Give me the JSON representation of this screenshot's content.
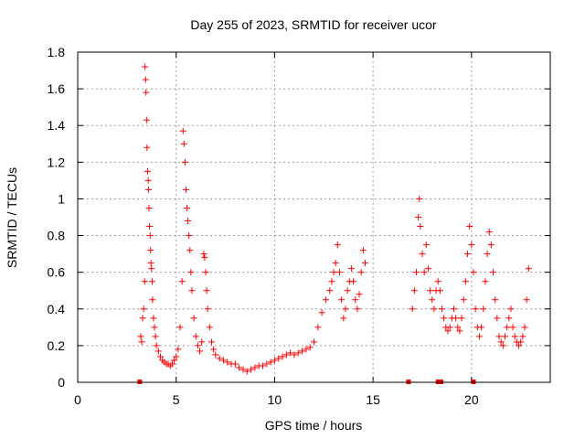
{
  "chart_data": {
    "type": "scatter",
    "title": "Day 255 of 2023, SRMTID for receiver ucor",
    "xlabel": "GPS time / hours",
    "ylabel": "SRMTID / TECUs",
    "xlim": [
      0,
      24
    ],
    "ylim": [
      0,
      1.8
    ],
    "xticks": [
      0,
      5,
      10,
      15,
      20
    ],
    "yticks": [
      0,
      0.2,
      0.4,
      0.6,
      0.8,
      1,
      1.2,
      1.4,
      1.6,
      1.8
    ],
    "xtick_labels": [
      "0",
      "5",
      "10",
      "15",
      "20"
    ],
    "ytick_labels": [
      "0",
      "0.2",
      "0.4",
      "0.6",
      "0.8",
      "1",
      "1.2",
      "1.4",
      "1.6",
      "1.8"
    ],
    "grid": true,
    "marker": "plus",
    "color": "#ff0000",
    "series": [
      {
        "name": "SRMTID",
        "points": [
          [
            3.2,
            0.25
          ],
          [
            3.25,
            0.22
          ],
          [
            3.3,
            0.35
          ],
          [
            3.35,
            0.4
          ],
          [
            3.4,
            0.55
          ],
          [
            3.42,
            1.72
          ],
          [
            3.45,
            1.65
          ],
          [
            3.47,
            1.58
          ],
          [
            3.5,
            1.43
          ],
          [
            3.52,
            1.28
          ],
          [
            3.55,
            1.15
          ],
          [
            3.58,
            1.1
          ],
          [
            3.6,
            1.05
          ],
          [
            3.62,
            0.95
          ],
          [
            3.65,
            0.85
          ],
          [
            3.68,
            0.8
          ],
          [
            3.7,
            0.72
          ],
          [
            3.72,
            0.65
          ],
          [
            3.75,
            0.62
          ],
          [
            3.78,
            0.55
          ],
          [
            3.8,
            0.45
          ],
          [
            3.85,
            0.35
          ],
          [
            3.9,
            0.3
          ],
          [
            3.95,
            0.25
          ],
          [
            4.0,
            0.2
          ],
          [
            4.1,
            0.17
          ],
          [
            4.2,
            0.14
          ],
          [
            4.3,
            0.12
          ],
          [
            4.4,
            0.11
          ],
          [
            4.5,
            0.1
          ],
          [
            4.6,
            0.1
          ],
          [
            4.7,
            0.09
          ],
          [
            4.8,
            0.1
          ],
          [
            4.9,
            0.12
          ],
          [
            5.0,
            0.14
          ],
          [
            5.1,
            0.18
          ],
          [
            5.2,
            0.3
          ],
          [
            5.3,
            0.55
          ],
          [
            5.35,
            1.37
          ],
          [
            5.4,
            1.3
          ],
          [
            5.45,
            1.2
          ],
          [
            5.5,
            1.05
          ],
          [
            5.55,
            0.95
          ],
          [
            5.6,
            0.88
          ],
          [
            5.65,
            0.8
          ],
          [
            5.7,
            0.72
          ],
          [
            5.75,
            0.6
          ],
          [
            5.8,
            0.5
          ],
          [
            5.9,
            0.35
          ],
          [
            6.0,
            0.25
          ],
          [
            6.1,
            0.2
          ],
          [
            6.2,
            0.17
          ],
          [
            6.3,
            0.22
          ],
          [
            6.4,
            0.7
          ],
          [
            6.45,
            0.68
          ],
          [
            6.5,
            0.6
          ],
          [
            6.55,
            0.5
          ],
          [
            6.6,
            0.4
          ],
          [
            6.7,
            0.3
          ],
          [
            6.8,
            0.22
          ],
          [
            6.9,
            0.18
          ],
          [
            7.0,
            0.15
          ],
          [
            7.2,
            0.13
          ],
          [
            7.4,
            0.12
          ],
          [
            7.6,
            0.11
          ],
          [
            7.8,
            0.1
          ],
          [
            8.0,
            0.1
          ],
          [
            8.2,
            0.08
          ],
          [
            8.4,
            0.07
          ],
          [
            8.6,
            0.06
          ],
          [
            8.8,
            0.07
          ],
          [
            9.0,
            0.08
          ],
          [
            9.2,
            0.09
          ],
          [
            9.4,
            0.09
          ],
          [
            9.6,
            0.1
          ],
          [
            9.8,
            0.11
          ],
          [
            10.0,
            0.12
          ],
          [
            10.2,
            0.13
          ],
          [
            10.4,
            0.14
          ],
          [
            10.6,
            0.15
          ],
          [
            10.8,
            0.16
          ],
          [
            11.0,
            0.15
          ],
          [
            11.2,
            0.16
          ],
          [
            11.4,
            0.17
          ],
          [
            11.6,
            0.18
          ],
          [
            11.8,
            0.19
          ],
          [
            12.0,
            0.22
          ],
          [
            12.2,
            0.3
          ],
          [
            12.4,
            0.38
          ],
          [
            12.6,
            0.45
          ],
          [
            12.8,
            0.5
          ],
          [
            12.9,
            0.55
          ],
          [
            13.0,
            0.6
          ],
          [
            13.1,
            0.65
          ],
          [
            13.2,
            0.75
          ],
          [
            13.3,
            0.6
          ],
          [
            13.4,
            0.45
          ],
          [
            13.5,
            0.35
          ],
          [
            13.6,
            0.4
          ],
          [
            13.7,
            0.5
          ],
          [
            13.8,
            0.55
          ],
          [
            13.9,
            0.62
          ],
          [
            14.0,
            0.55
          ],
          [
            14.1,
            0.45
          ],
          [
            14.2,
            0.4
          ],
          [
            14.3,
            0.48
          ],
          [
            14.4,
            0.6
          ],
          [
            14.5,
            0.72
          ],
          [
            14.6,
            0.65
          ],
          [
            17.0,
            0.4
          ],
          [
            17.1,
            0.5
          ],
          [
            17.2,
            0.6
          ],
          [
            17.3,
            0.9
          ],
          [
            17.35,
            1.0
          ],
          [
            17.4,
            0.85
          ],
          [
            17.5,
            0.7
          ],
          [
            17.6,
            0.6
          ],
          [
            17.7,
            0.75
          ],
          [
            17.8,
            0.62
          ],
          [
            17.9,
            0.5
          ],
          [
            18.0,
            0.45
          ],
          [
            18.1,
            0.4
          ],
          [
            18.2,
            0.5
          ],
          [
            18.3,
            0.55
          ],
          [
            18.4,
            0.5
          ],
          [
            18.5,
            0.4
          ],
          [
            18.6,
            0.35
          ],
          [
            18.7,
            0.3
          ],
          [
            18.8,
            0.28
          ],
          [
            18.9,
            0.3
          ],
          [
            19.0,
            0.35
          ],
          [
            19.1,
            0.4
          ],
          [
            19.2,
            0.35
          ],
          [
            19.3,
            0.3
          ],
          [
            19.4,
            0.28
          ],
          [
            19.5,
            0.35
          ],
          [
            19.6,
            0.45
          ],
          [
            19.7,
            0.55
          ],
          [
            19.8,
            0.7
          ],
          [
            19.9,
            0.85
          ],
          [
            20.0,
            0.75
          ],
          [
            20.1,
            0.6
          ],
          [
            20.2,
            0.4
          ],
          [
            20.3,
            0.3
          ],
          [
            20.4,
            0.25
          ],
          [
            20.5,
            0.3
          ],
          [
            20.6,
            0.4
          ],
          [
            20.7,
            0.55
          ],
          [
            20.8,
            0.7
          ],
          [
            20.9,
            0.82
          ],
          [
            21.0,
            0.75
          ],
          [
            21.1,
            0.6
          ],
          [
            21.2,
            0.45
          ],
          [
            21.3,
            0.35
          ],
          [
            21.4,
            0.25
          ],
          [
            21.5,
            0.22
          ],
          [
            21.6,
            0.2
          ],
          [
            21.7,
            0.25
          ],
          [
            21.8,
            0.3
          ],
          [
            21.9,
            0.35
          ],
          [
            22.0,
            0.4
          ],
          [
            22.1,
            0.3
          ],
          [
            22.2,
            0.25
          ],
          [
            22.3,
            0.22
          ],
          [
            22.4,
            0.2
          ],
          [
            22.5,
            0.22
          ],
          [
            22.6,
            0.25
          ],
          [
            22.7,
            0.3
          ],
          [
            22.8,
            0.45
          ],
          [
            22.9,
            0.62
          ]
        ]
      }
    ],
    "zero_markers": [
      3.15,
      16.8,
      18.3,
      18.45,
      20.1
    ]
  }
}
